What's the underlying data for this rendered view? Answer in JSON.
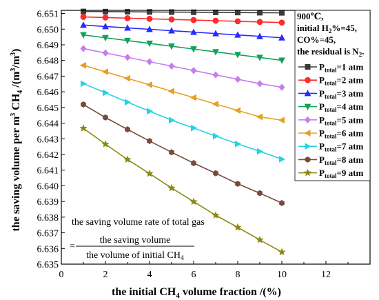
{
  "chart_data": {
    "type": "line",
    "xlabel": {
      "main": "the initial CH",
      "sub": "4",
      "rest": " volume fraction /(%)"
    },
    "ylabel": {
      "p1": "the saving volume per m",
      "sup1": "3",
      "p2": " CH",
      "sub2": "4",
      "p3": " /(m",
      "sup3": "3",
      "p4": "/m",
      "sup4": "3",
      "p5": ")"
    },
    "xlim": [
      0,
      14
    ],
    "ylim": [
      6.635,
      6.6512
    ],
    "xticks": [
      0,
      2,
      4,
      6,
      8,
      10,
      12
    ],
    "xtick_labels": [
      "0",
      "2",
      "4",
      "6",
      "8",
      "10",
      "12"
    ],
    "yticks": [
      6.635,
      6.636,
      6.637,
      6.638,
      6.639,
      6.64,
      6.641,
      6.642,
      6.643,
      6.644,
      6.645,
      6.646,
      6.647,
      6.648,
      6.649,
      6.65,
      6.651
    ],
    "ytick_labels": [
      "6.635",
      "6.636",
      "6.637",
      "6.638",
      "6.639",
      "6.640",
      "6.641",
      "6.642",
      "6.643",
      "6.644",
      "6.645",
      "6.646",
      "6.647",
      "6.648",
      "6.649",
      "6.650",
      "6.651"
    ],
    "x": [
      1,
      2,
      3,
      4,
      5,
      6,
      7,
      8,
      9,
      10
    ],
    "legend_placement": "top-right",
    "annotation": {
      "line1": "900℃,",
      "line2_a": "initial H",
      "line2_sub": "2",
      "line2_b": "%=45,",
      "line3": "CO%=45,",
      "line4_a": "the residual is N",
      "line4_sub": "2",
      "line4_b": "."
    },
    "series": [
      {
        "name": "P_total=1 atm",
        "label_main": "P",
        "label_sub": "total",
        "label_rest": "=1 atm",
        "color": "#3a3a3a",
        "marker": "square",
        "values": [
          6.65113,
          6.65112,
          6.65111,
          6.6511,
          6.65109,
          6.65108,
          6.65107,
          6.65106,
          6.65105,
          6.65104
        ]
      },
      {
        "name": "P_total=2 atm",
        "label_main": "P",
        "label_sub": "total",
        "label_rest": "=2 atm",
        "color": "#ff2a2a",
        "marker": "circle",
        "values": [
          6.65078,
          6.65074,
          6.6507,
          6.65066,
          6.65062,
          6.65058,
          6.65054,
          6.6505,
          6.65046,
          6.65042
        ]
      },
      {
        "name": "P_total=3 atm",
        "label_main": "P",
        "label_sub": "total",
        "label_rest": "=3 atm",
        "color": "#2a2aff",
        "marker": "triangle-up",
        "values": [
          6.65026,
          6.65017,
          6.65008,
          6.64999,
          6.6499,
          6.64981,
          6.64972,
          6.64963,
          6.64954,
          6.64945
        ]
      },
      {
        "name": "P_total=4 atm",
        "label_main": "P",
        "label_sub": "total",
        "label_rest": "=4 atm",
        "color": "#13a05a",
        "marker": "triangle-down",
        "values": [
          6.64963,
          6.64945,
          6.64927,
          6.64909,
          6.64891,
          6.64873,
          6.64855,
          6.64837,
          6.64819,
          6.64801
        ]
      },
      {
        "name": "P_total=5 atm",
        "label_main": "P",
        "label_sub": "total",
        "label_rest": "=5 atm",
        "color": "#c77cf0",
        "marker": "diamond",
        "values": [
          6.64876,
          6.64848,
          6.6482,
          6.64792,
          6.64764,
          6.64736,
          6.64708,
          6.6468,
          6.64652,
          6.64629
        ]
      },
      {
        "name": "P_total=6 atm",
        "label_main": "P",
        "label_sub": "total",
        "label_rest": "=6 atm",
        "color": "#e8a020",
        "marker": "triangle-left",
        "values": [
          6.64769,
          6.64728,
          6.64686,
          6.64645,
          6.64604,
          6.64563,
          6.64522,
          6.64481,
          6.6444,
          6.64419
        ]
      },
      {
        "name": "P_total=7 atm",
        "label_main": "P",
        "label_sub": "total",
        "label_rest": "=7 atm",
        "color": "#25d4e4",
        "marker": "triangle-right",
        "values": [
          6.64652,
          6.64594,
          6.64534,
          6.64476,
          6.64419,
          6.64369,
          6.64317,
          6.64267,
          6.6422,
          6.6417
        ]
      },
      {
        "name": "P_total=8 atm",
        "label_main": "P",
        "label_sub": "total",
        "label_rest": "=8 atm",
        "color": "#7b4a3a",
        "marker": "hexagon",
        "values": [
          6.64519,
          6.64436,
          6.6436,
          6.64286,
          6.64214,
          6.64145,
          6.6408,
          6.64013,
          6.63953,
          6.6389
        ]
      },
      {
        "name": "P_total=9 atm",
        "label_main": "P",
        "label_sub": "total",
        "label_rest": "=9 atm",
        "color": "#8a8a10",
        "marker": "star",
        "values": [
          6.64367,
          6.64266,
          6.64168,
          6.64078,
          6.63986,
          6.63899,
          6.63812,
          6.63735,
          6.63655,
          6.63577
        ]
      }
    ],
    "note": {
      "title": "the saving volume rate of total gas",
      "equals": "=",
      "numerator": "the saving volume",
      "denominator_main": "the volume of initial CH",
      "denominator_sub": "4"
    }
  }
}
